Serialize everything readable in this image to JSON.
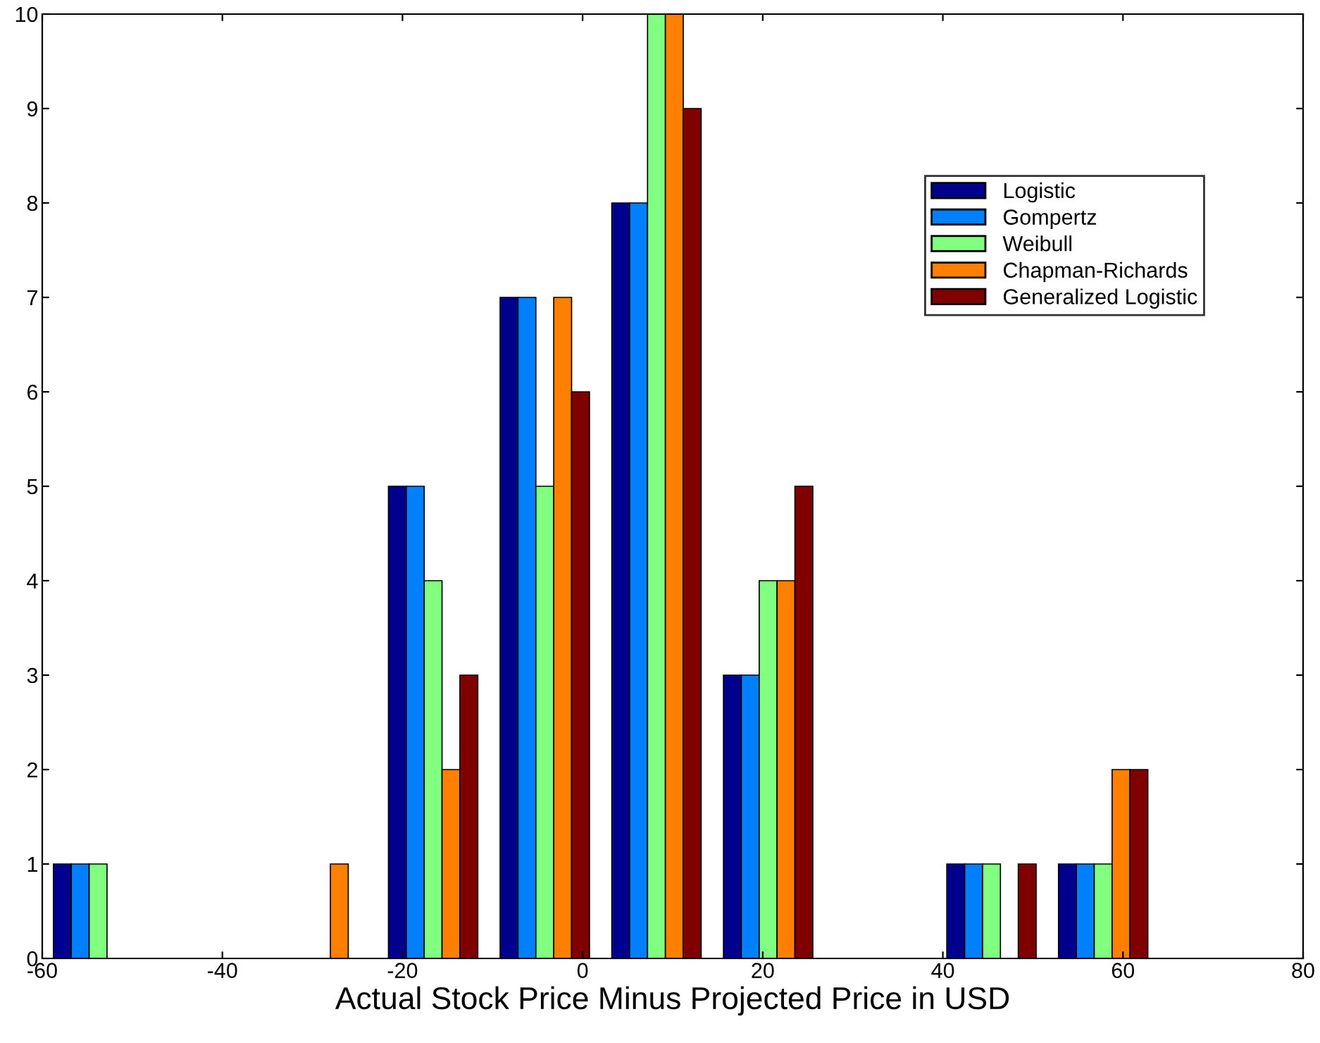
{
  "chart_data": {
    "type": "bar",
    "xlabel": "Actual Stock Price Minus Projected Price in USD",
    "x": [
      -53.8,
      -41.4,
      -29.0,
      -16.6,
      -4.2,
      8.2,
      20.6,
      33.0,
      45.4,
      57.8
    ],
    "series": [
      {
        "name": "Logistic",
        "color": "#00008f",
        "values": [
          1,
          0,
          0,
          5,
          7,
          8,
          3,
          0,
          1,
          1
        ]
      },
      {
        "name": "Gompertz",
        "color": "#0080ff",
        "values": [
          1,
          0,
          0,
          5,
          7,
          8,
          3,
          0,
          1,
          1
        ]
      },
      {
        "name": "Weibull",
        "color": "#80ff80",
        "values": [
          1,
          0,
          0,
          4,
          5,
          10,
          4,
          0,
          1,
          1
        ]
      },
      {
        "name": "Chapman-Richards",
        "color": "#ff8000",
        "values": [
          0,
          0,
          1,
          2,
          7,
          10,
          4,
          0,
          0,
          2
        ]
      },
      {
        "name": "Generalized Logistic",
        "color": "#800000",
        "values": [
          0,
          0,
          0,
          3,
          6,
          9,
          5,
          0,
          1,
          2
        ]
      }
    ],
    "xlim": [
      -60,
      80
    ],
    "xticks": [
      -60,
      -40,
      -20,
      0,
      20,
      40,
      60,
      80
    ],
    "ylim": [
      0,
      10
    ],
    "yticks": [
      0,
      1,
      2,
      3,
      4,
      5,
      6,
      7,
      8,
      9,
      10
    ],
    "grid": false,
    "legend": "top right"
  }
}
